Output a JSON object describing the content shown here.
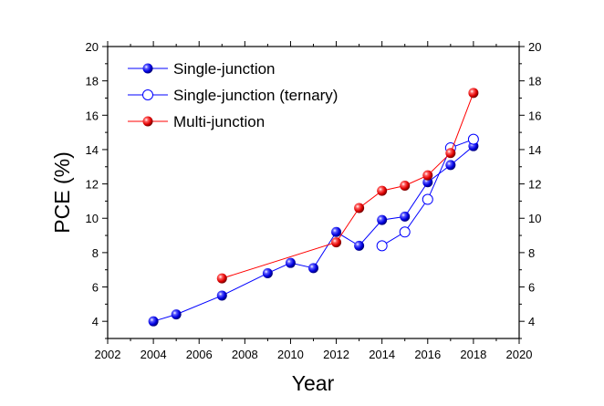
{
  "chart_data": {
    "type": "line",
    "xlabel": "Year",
    "ylabel": "PCE (%)",
    "xlim": [
      2002,
      2020
    ],
    "ylim": [
      3,
      20
    ],
    "x_ticks": [
      "2002",
      "2004",
      "2006",
      "2008",
      "2010",
      "2012",
      "2014",
      "2016",
      "2018",
      "2020"
    ],
    "y_ticks": [
      "4",
      "6",
      "8",
      "10",
      "12",
      "14",
      "16",
      "18",
      "20"
    ],
    "y_ticks_right": [
      "4",
      "6",
      "8",
      "10",
      "12",
      "14",
      "16",
      "18",
      "20"
    ],
    "grid": false,
    "legend_position": "top-left",
    "series": [
      {
        "name": "Single-junction",
        "color": "#0000ff",
        "marker": "filled-sphere",
        "x": [
          2004,
          2005,
          2007,
          2009,
          2010,
          2011,
          2012,
          2013,
          2014,
          2015,
          2016,
          2017,
          2018
        ],
        "y": [
          4.0,
          4.4,
          5.5,
          6.8,
          7.4,
          7.1,
          9.2,
          8.4,
          9.9,
          10.1,
          12.1,
          13.1,
          14.2
        ]
      },
      {
        "name": "Single-junction (ternary)",
        "color": "#0000ff",
        "marker": "hollow-circle",
        "x": [
          2014,
          2015,
          2016,
          2017,
          2018
        ],
        "y": [
          8.4,
          9.2,
          11.1,
          14.1,
          14.6
        ]
      },
      {
        "name": "Multi-junction",
        "color": "#ff0000",
        "marker": "filled-sphere",
        "x": [
          2007,
          2012,
          2013,
          2014,
          2015,
          2016,
          2017,
          2018
        ],
        "y": [
          6.5,
          8.6,
          10.6,
          11.6,
          11.9,
          12.5,
          13.8,
          17.3
        ]
      }
    ]
  }
}
